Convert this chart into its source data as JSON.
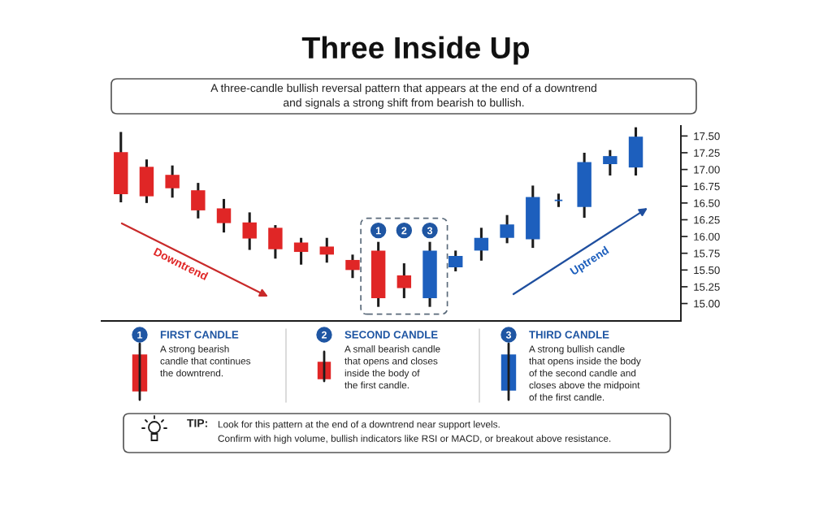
{
  "chart_data": {
    "type": "candlestick",
    "title": "Three Inside Up",
    "subtitle": "A three-candle bullish reversal pattern that appears at the end of a downtrend\nand signals a strong shift from bearish to bullish.",
    "categories": [
      null,
      null,
      null,
      null,
      null,
      null,
      null,
      null,
      null,
      null,
      null,
      null,
      null,
      null,
      null,
      null,
      null,
      null,
      null,
      null,
      null
    ],
    "ohlc": [
      [
        17.26,
        17.56,
        16.51,
        16.63
      ],
      [
        17.04,
        17.15,
        16.5,
        16.6
      ],
      [
        16.92,
        17.06,
        16.58,
        16.72
      ],
      [
        16.69,
        16.8,
        16.27,
        16.39
      ],
      [
        16.42,
        16.56,
        16.06,
        16.2
      ],
      [
        16.21,
        16.36,
        15.8,
        15.97
      ],
      [
        16.13,
        16.17,
        15.67,
        15.81
      ],
      [
        15.91,
        15.98,
        15.58,
        15.77
      ],
      [
        15.85,
        15.98,
        15.61,
        15.73
      ],
      [
        15.65,
        15.73,
        15.38,
        15.5
      ],
      [
        15.79,
        15.92,
        14.95,
        15.08
      ],
      [
        15.42,
        15.6,
        15.08,
        15.23
      ],
      [
        15.08,
        15.92,
        14.95,
        15.79
      ],
      [
        15.54,
        15.79,
        15.48,
        15.71
      ],
      [
        15.79,
        16.13,
        15.64,
        15.98
      ],
      [
        15.98,
        16.32,
        15.9,
        16.18
      ],
      [
        15.96,
        16.76,
        15.83,
        16.59
      ],
      [
        16.54,
        16.64,
        16.44,
        16.54
      ],
      [
        16.44,
        17.25,
        16.28,
        17.11
      ],
      [
        17.08,
        17.29,
        16.91,
        17.2
      ],
      [
        17.03,
        17.63,
        16.91,
        17.49
      ]
    ],
    "colors": [
      "#e02626",
      "#e02626",
      "#e02626",
      "#e02626",
      "#e02626",
      "#e02626",
      "#e02626",
      "#e02626",
      "#e02626",
      "#e02626",
      "#e02626",
      "#e02626",
      "#1d5fbd",
      "#1d5fbd",
      "#1d5fbd",
      "#1d5fbd",
      "#1d5fbd",
      "#1d5fbd",
      "#1d5fbd",
      "#1d5fbd",
      "#1d5fbd"
    ],
    "ylim": [
      14.74,
      17.65
    ],
    "yticks": [
      {
        "value": 15,
        "label": "15.00"
      },
      {
        "value": 15.25,
        "label": "15.25"
      },
      {
        "value": 15.5,
        "label": "15.50"
      },
      {
        "value": 15.75,
        "label": "15.75"
      },
      {
        "value": 16,
        "label": "16.00"
      },
      {
        "value": 16.25,
        "label": "16.25"
      },
      {
        "value": 16.5,
        "label": "16.50"
      },
      {
        "value": 16.75,
        "label": "16.75"
      },
      {
        "value": 17,
        "label": "17.00"
      },
      {
        "value": 17.25,
        "label": "17.25"
      },
      {
        "value": 17.5,
        "label": "17.50"
      }
    ],
    "tick_labels": "y",
    "annotations": [
      "Downtrend",
      "Uptrend",
      "1",
      "2",
      "3",
      "1",
      "FIRST CANDLE",
      "A strong bearish\ncandle that continues\nthe downtrend.",
      "2",
      "SECOND CANDLE",
      "A small bearish candle\nthat opens and closes\ninside the body of\nthe first candle.",
      "3",
      "THIRD CANDLE",
      "A strong bullish candle\nthat opens inside the body\nof the second candle and\ncloses above the midpoint\nof the first candle.",
      "TIP:",
      "Look for this pattern at the end of a downtrend near support levels.\nConfirm with high volume, bullish indicators like RSI or MACD, or breakout above resistance."
    ]
  }
}
